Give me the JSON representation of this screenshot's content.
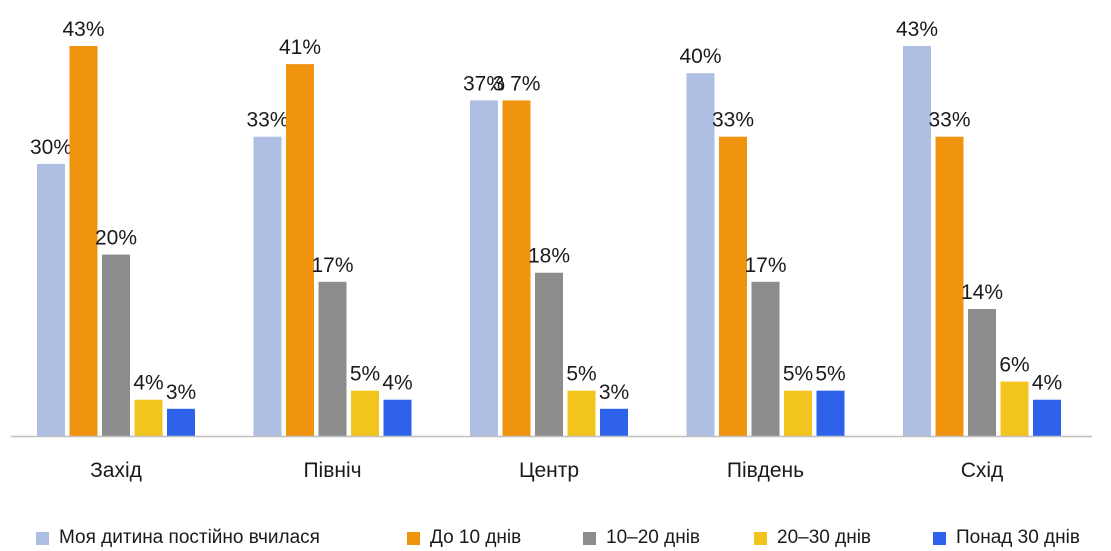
{
  "chart_data": {
    "type": "bar",
    "categories": [
      "Захід",
      "Північ",
      "Центр",
      "Південь",
      "Схід"
    ],
    "series": [
      {
        "name": "Моя дитина постійно вчилася",
        "color": "#AEBFE3",
        "values": [
          30,
          33,
          37,
          40,
          43
        ]
      },
      {
        "name": "До 10 днів",
        "color": "#F0940F",
        "values": [
          43,
          41,
          37,
          33,
          33
        ]
      },
      {
        "name": "10–20 днів",
        "color": "#8C8C8C",
        "values": [
          20,
          17,
          18,
          17,
          14
        ]
      },
      {
        "name": "20–30 днів",
        "color": "#F2C51E",
        "values": [
          4,
          5,
          5,
          5,
          6
        ]
      },
      {
        "name": "Понад 30 днів",
        "color": "#2F62EA",
        "values": [
          3,
          4,
          3,
          5,
          4
        ]
      }
    ],
    "data_labels": [
      [
        "30%",
        "43%",
        "20%",
        "4%",
        "3%"
      ],
      [
        "33%",
        "41%",
        "17%",
        "5%",
        "4%"
      ],
      [
        "37%",
        "3 7%",
        "18%",
        "5%",
        "3%"
      ],
      [
        "40%",
        "33%",
        "17%",
        "5%",
        "5%"
      ],
      [
        "43%",
        "33%",
        "14%",
        "6%",
        "4%"
      ]
    ],
    "ylim": [
      0,
      44
    ],
    "y_axis_visible": false,
    "grid": false,
    "legend_position": "bottom",
    "axis_line_color": "#BFBFBF"
  }
}
